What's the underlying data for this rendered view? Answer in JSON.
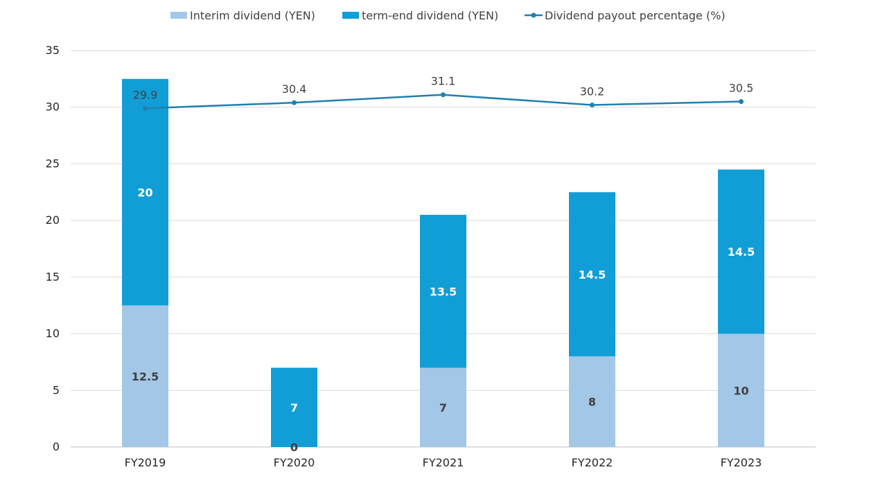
{
  "chart_data": {
    "type": "bar",
    "stacked": true,
    "categories": [
      "FY2019",
      "FY2020",
      "FY2021",
      "FY2022",
      "FY2023"
    ],
    "series": [
      {
        "name": "Interim dividend (YEN)",
        "kind": "bar",
        "values": [
          12.5,
          0,
          7,
          8,
          10
        ],
        "color": "#a3c7e6",
        "label_color": "#404040"
      },
      {
        "name": "term-end dividend (YEN)",
        "kind": "bar",
        "values": [
          20,
          7,
          13.5,
          14.5,
          14.5
        ],
        "color": "#119ed6",
        "label_color": "#ffffff"
      },
      {
        "name": "Dividend payout percentage (%)",
        "kind": "line",
        "values": [
          29.9,
          30.4,
          31.1,
          30.2,
          30.5
        ],
        "color": "#1f7fb0"
      }
    ],
    "ylim": [
      0,
      35
    ],
    "yticks": [
      0,
      5,
      10,
      15,
      20,
      25,
      30,
      35
    ],
    "xlabel": "",
    "ylabel": "",
    "title": "",
    "grid": true,
    "legend_position": "top"
  }
}
